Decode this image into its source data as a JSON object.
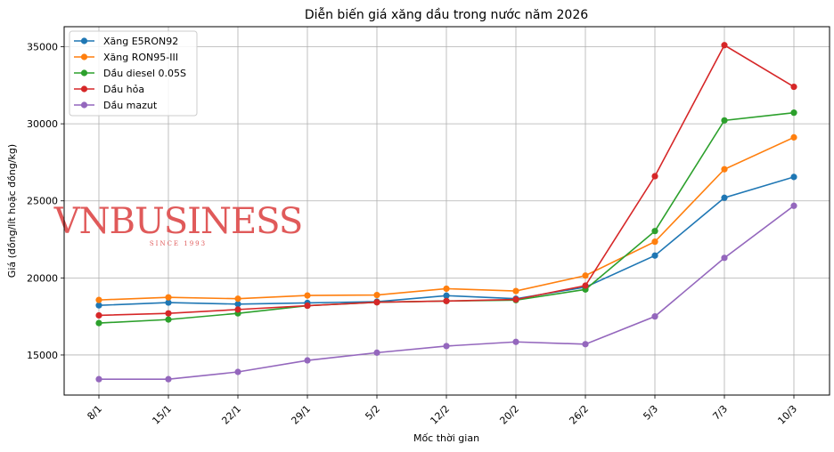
{
  "chart_data": {
    "type": "line",
    "title": "Diễn biến giá xăng dầu trong nước năm 2026",
    "xlabel": "Mốc thời gian",
    "ylabel": "Giá (đồng/lít hoặc đồng/kg)",
    "categories": [
      "8/1",
      "15/1",
      "22/1",
      "29/1",
      "5/2",
      "12/2",
      "20/2",
      "26/2",
      "5/3",
      "7/3",
      "10/3"
    ],
    "ylim": [
      12400,
      36300
    ],
    "yticks": [
      15000,
      20000,
      25000,
      30000,
      35000
    ],
    "grid": true,
    "legend_position": "top-left",
    "series": [
      {
        "name": "Xăng E5RON92",
        "color": "#1f77b4",
        "values": [
          18220,
          18400,
          18300,
          18380,
          18460,
          18850,
          18650,
          19400,
          21450,
          25200,
          26550
        ]
      },
      {
        "name": "Xăng RON95-III",
        "color": "#ff7f0e",
        "values": [
          18570,
          18740,
          18650,
          18860,
          18890,
          19300,
          19150,
          20150,
          22350,
          27050,
          29120
        ]
      },
      {
        "name": "Dầu diesel 0.05S",
        "color": "#2ca02c",
        "values": [
          17070,
          17300,
          17700,
          18200,
          18420,
          18500,
          18560,
          19250,
          23040,
          30220,
          30720
        ]
      },
      {
        "name": "Dầu hỏa",
        "color": "#d62728",
        "values": [
          17570,
          17700,
          17950,
          18200,
          18420,
          18500,
          18600,
          19500,
          26600,
          35100,
          32400
        ]
      },
      {
        "name": "Dầu mazut",
        "color": "#9467bd",
        "values": [
          13430,
          13430,
          13900,
          14650,
          15150,
          15580,
          15850,
          15700,
          17500,
          21300,
          24680
        ]
      }
    ]
  },
  "watermark": {
    "text": "VNBUSINESS",
    "subtext": "SINCE 1993"
  }
}
